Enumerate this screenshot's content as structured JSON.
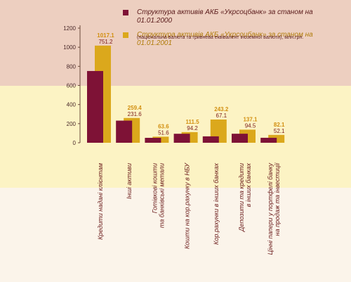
{
  "colors": {
    "series_2000": "#7e1236",
    "series_2001": "#dba81c",
    "label_2000": "#7a1a1a",
    "label_2001": "#d28f10",
    "band_top": "#edcfc0",
    "band_mid": "#fcf3c4",
    "band_bot": "#fbf4ea",
    "axis": "#6b4a3a",
    "tick_text": "#4a2a2a",
    "category_text": "#6a1a1a"
  },
  "legend": {
    "items": [
      {
        "label": "Структура активів АКБ «Укрсоцбанк» за станом на 01.01.2000",
        "color_key": "series_2000"
      },
      {
        "label": "Структура активів АКБ «Укрсоцбанк» за станом на 01.01.2001",
        "color_key": "series_2001"
      }
    ],
    "note": "(національна валюта та гривнева еквівалент іноземної валюти), млн.грн."
  },
  "chart_data": {
    "type": "bar",
    "categories": [
      [
        "Кредити надані клієнтам"
      ],
      [
        "Інші активи"
      ],
      [
        "Готівкові кошти",
        "та банківські метали"
      ],
      [
        "Кошти на кор.рахунку в НБУ"
      ],
      [
        "Кор.рахунки в інших банках"
      ],
      [
        "Депозити та кредити",
        "в інших банках"
      ],
      [
        "Цінні папери у портфелі банку",
        "на продаж та інвестиції"
      ]
    ],
    "series": [
      {
        "name": "01.01.2000",
        "values": [
          751.2,
          231.6,
          51.6,
          94.2,
          67.1,
          94.5,
          52.1
        ],
        "labels": [
          "751.2",
          "231.6",
          "51.6",
          "94.2",
          "67.1",
          "94.5",
          "52.1"
        ]
      },
      {
        "name": "01.01.2001",
        "values": [
          1017.1,
          259.4,
          63.6,
          111.5,
          243.2,
          137.1,
          82.1
        ],
        "labels": [
          "1017.1",
          "259.4",
          "63.6",
          "111.5",
          "243.2",
          "137.1",
          "82.1"
        ]
      }
    ],
    "yticks": [
      0,
      200,
      400,
      600,
      800,
      1000,
      1200
    ],
    "ylim": [
      0,
      1200
    ],
    "grid": false,
    "legend_position": "top-right"
  }
}
